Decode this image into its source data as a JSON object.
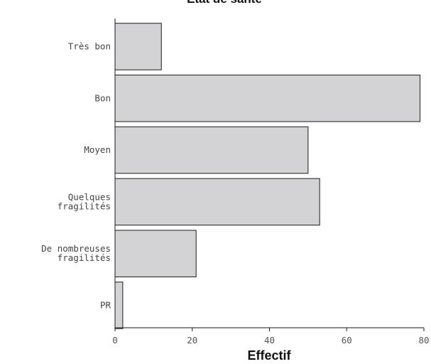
{
  "chart_data": {
    "type": "bar",
    "orientation": "horizontal",
    "title": "État de santé",
    "xlabel": "Effectif",
    "ylabel": "",
    "categories": [
      [
        "Très bon"
      ],
      [
        "Bon"
      ],
      [
        "Moyen"
      ],
      [
        "Quelques",
        "fragilités"
      ],
      [
        "De nombreuses",
        "fragilités"
      ],
      [
        "PR"
      ]
    ],
    "values": [
      12,
      79,
      50,
      53,
      21,
      2
    ],
    "xlim": [
      0,
      80
    ],
    "xticks": [
      0,
      20,
      40,
      60,
      80
    ],
    "grid": false,
    "colors": {
      "bar_fill": "#d3d3d5",
      "bar_stroke": "#1a1a1a",
      "text": "#444444"
    }
  }
}
